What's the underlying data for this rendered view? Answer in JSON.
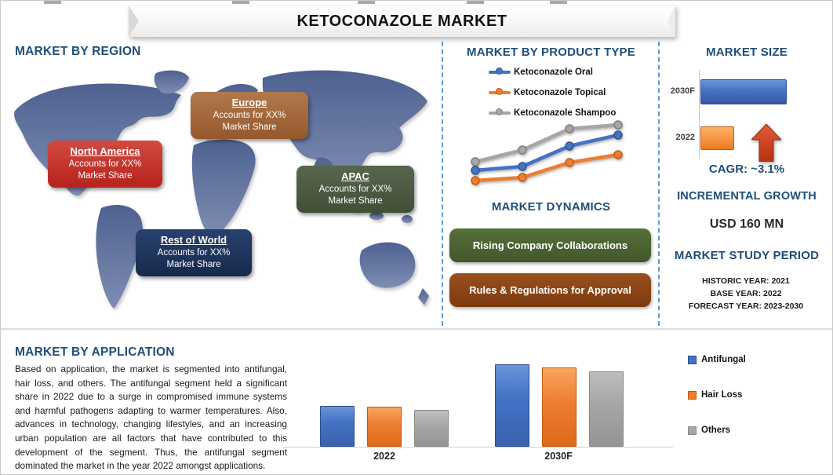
{
  "title": "KETOCONAZOLE MARKET",
  "sections": {
    "region": {
      "heading": "MARKET BY REGION",
      "callouts": [
        {
          "name": "North America",
          "line1": "Accounts for XX%",
          "line2": "Market Share",
          "color": "#BE2D25"
        },
        {
          "name": "Europe",
          "line1": "Accounts for XX%",
          "line2": "Market Share",
          "color": "#A5683C"
        },
        {
          "name": "APAC",
          "line1": "Accounts for XX%",
          "line2": "Market Share",
          "color": "#4C5B42"
        },
        {
          "name": "Rest of World",
          "line1": "Accounts for XX%",
          "line2": "Market Share",
          "color": "#1F3864"
        }
      ],
      "map_color": "#5B6FA0"
    },
    "product_type": {
      "heading": "MARKET BY PRODUCT TYPE"
    },
    "dynamics": {
      "heading": "MARKET DYNAMICS",
      "items": [
        "Rising Company Collaborations",
        "Rules & Regulations for Approval"
      ],
      "item_colors": [
        "#4A6331",
        "#8C4417"
      ]
    },
    "market_size": {
      "heading": "MARKET SIZE",
      "cagr_label": "CAGR: ~3.1%",
      "arrow_color": "#D04015",
      "incremental_heading": "INCREMENTAL GROWTH",
      "incremental_value": "USD 160 MN",
      "study_period_heading": "MARKET STUDY PERIOD",
      "historic": "HISTORIC YEAR: 2021",
      "base": "BASE YEAR: 2022",
      "forecast": "FORECAST YEAR: 2023-2030"
    },
    "application": {
      "heading": "MARKET BY APPLICATION",
      "paragraph": "Based on application, the market is segmented into antifungal, hair loss, and others. The antifungal segment held a significant share in 2022 due to a surge in compromised immune systems and harmful pathogens adapting to warmer temperatures. Also, advances in technology, changing lifestyles, and an increasing urban population are all factors that have contributed to this development of the segment. Thus, the antifungal segment dominated the market in the year 2022 amongst applications."
    }
  },
  "chart_data": [
    {
      "id": "product_type_trend",
      "type": "line",
      "title": "MARKET BY PRODUCT TYPE",
      "x": [
        1,
        2,
        3,
        4
      ],
      "x_labels": [],
      "axes_visible": false,
      "legend_position": "top-left",
      "ylim": [
        0,
        100
      ],
      "series": [
        {
          "name": "Ketoconazole Oral",
          "color": "#4472C4",
          "edge": "#2F5597",
          "values": [
            32,
            37,
            63,
            77
          ]
        },
        {
          "name": "Ketoconazole Topical",
          "color": "#ED7D31",
          "edge": "#C55A11",
          "values": [
            19,
            23,
            42,
            52
          ]
        },
        {
          "name": "Ketoconazole Shampoo",
          "color": "#A6A6A6",
          "edge": "#7F7F7F",
          "values": [
            43,
            58,
            85,
            90
          ]
        }
      ]
    },
    {
      "id": "market_size_bars",
      "type": "bar",
      "orientation": "horizontal",
      "title": "MARKET SIZE",
      "categories": [
        "2030F",
        "2022"
      ],
      "values": [
        100,
        39
      ],
      "value_note": "relative index, 2030F = 100; CAGR ~3.1%, incremental growth USD 160 MN",
      "colors": [
        "#4472C4",
        "#F79646"
      ],
      "axes_visible": false,
      "legend_position": "none"
    },
    {
      "id": "application_bars",
      "type": "bar",
      "title": "MARKET BY APPLICATION",
      "categories": [
        "2022",
        "2030F"
      ],
      "value_note": "relative index, Antifungal 2030F = 100",
      "series": [
        {
          "name": "Antifungal",
          "color": "#4472C4",
          "edge": "#2E4D8E",
          "values": [
            50,
            100
          ]
        },
        {
          "name": "Hair Loss",
          "color": "#ED7D31",
          "edge": "#C55A11",
          "values": [
            49,
            96
          ]
        },
        {
          "name": "Others",
          "color": "#A6A6A6",
          "edge": "#8A8A8A",
          "values": [
            45,
            91
          ]
        }
      ],
      "legend_position": "right",
      "axes_visible": true
    }
  ]
}
